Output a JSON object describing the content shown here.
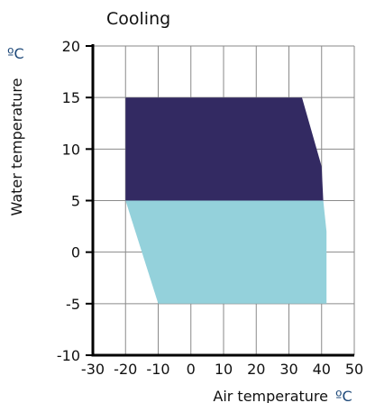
{
  "chart_data": {
    "type": "area",
    "title": "Cooling",
    "xlabel": "Air temperature",
    "xunit": "ºC",
    "ylabel": "Water temperature",
    "yunit": "ºC",
    "xlim": [
      -30,
      50
    ],
    "ylim": [
      -10,
      20
    ],
    "xticks": [
      -30,
      -20,
      -10,
      0,
      10,
      20,
      30,
      40,
      50
    ],
    "yticks": [
      -10,
      -5,
      0,
      5,
      10,
      15,
      20
    ],
    "grid": true,
    "regions": [
      {
        "color": "#94d1db",
        "points": [
          [
            -20,
            5
          ],
          [
            40.5,
            5
          ],
          [
            41.5,
            2
          ],
          [
            41.5,
            -5
          ],
          [
            -10,
            -5
          ]
        ]
      },
      {
        "color": "#332a62",
        "points": [
          [
            -20,
            15
          ],
          [
            34,
            15
          ],
          [
            40,
            8.3
          ],
          [
            40.5,
            5
          ],
          [
            -20,
            5
          ]
        ]
      }
    ]
  }
}
